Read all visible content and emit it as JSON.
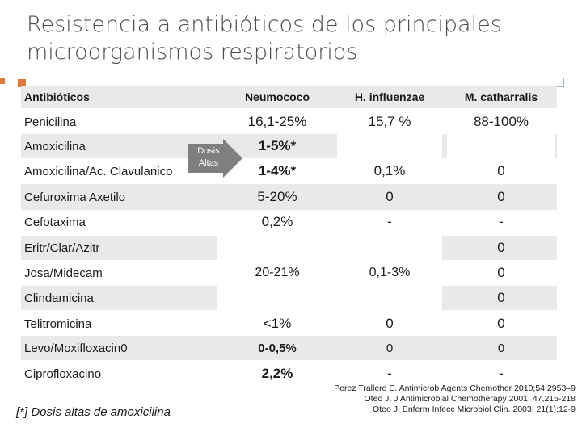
{
  "title_line1": "Resistencia a antibióticos de los principales",
  "title_line2": "microorganismos respiratorios",
  "headers": [
    "Antibióticos",
    "Neumococo",
    "H. influenzae",
    "M. catharralis"
  ],
  "rows": [
    {
      "name": "Penicilina",
      "neumo": "16,1-25%",
      "hinf": "15,7 %",
      "mcat": "88-100%"
    },
    {
      "name": "Amoxicilina",
      "neumo": "1-5%*",
      "hinf": "",
      "mcat": ""
    },
    {
      "name": "Amoxicilina/Ac. Clavulanico",
      "neumo": "1-4%*",
      "hinf": "0,1%",
      "mcat": "0"
    },
    {
      "name": "Cefuroxima Axetilo",
      "neumo": "5-20%",
      "hinf": "0",
      "mcat": "0"
    },
    {
      "name": "Cefotaxima",
      "neumo": "0,2%",
      "hinf": "-",
      "mcat": "-"
    },
    {
      "name": "Eritr/Clar/Azitr",
      "neumo": "",
      "hinf": "",
      "mcat": "0"
    },
    {
      "name": "Josa/Midecam",
      "neumo": "",
      "hinf": "",
      "mcat": "0"
    },
    {
      "name": "Clindamicina",
      "neumo": "",
      "hinf": "",
      "mcat": "0"
    },
    {
      "name": "Telitromicina",
      "neumo": "<1%",
      "hinf": "0",
      "mcat": "0"
    },
    {
      "name": "Levo/Moxifloxacin0",
      "neumo": "0-0,5%",
      "hinf": "0",
      "mcat": "0"
    },
    {
      "name": "Ciprofloxacino",
      "neumo": "2,2%",
      "hinf": "-",
      "mcat": "-"
    }
  ],
  "merged_neumo": "20-21%",
  "merged_hinf": "0,1-3%",
  "arrow_label_1": "Dosis",
  "arrow_label_2": "Altas",
  "footnote": "[*] Dosis altas de amoxicilina",
  "refs": [
    "Perez Trallero E. Antimicrob Agents Chemother 2010;54:2953–9",
    "Oteo J.  J Antimicrobial Chemotherapy 2001. 47,215-218",
    "Oteo J. Enferm Infecc Microbiol Clin. 2003: 21(1):12-9"
  ],
  "colors": {
    "accent": "#e07a3a",
    "shade": "#e9e9e9",
    "arrow": "#7f7f7f"
  }
}
